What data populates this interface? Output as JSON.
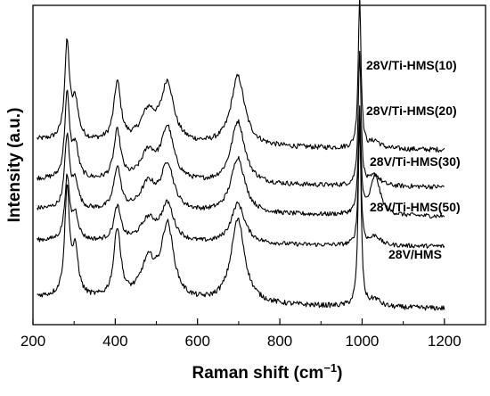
{
  "chart_data": {
    "type": "line",
    "title": "",
    "xlabel": "Raman shift (cm",
    "xlabel_sup": "−1",
    "xlabel_end": ")",
    "ylabel": "Intensity (a.u.)",
    "xlim": [
      200,
      1300
    ],
    "xticks": [
      "200",
      "400",
      "600",
      "800",
      "1000",
      "1200"
    ],
    "yticks_shown": false,
    "series": [
      {
        "name": "28V/Ti-HMS(10)",
        "offset": 4.35,
        "scale": 1.0
      },
      {
        "name": "28V/Ti-HMS(20)",
        "offset": 3.35,
        "scale": 0.95
      },
      {
        "name": "28V/Ti-HMS(30)",
        "offset": 2.55,
        "scale": 0.9
      },
      {
        "name": "28V/Ti-HMS(50)",
        "offset": 1.75,
        "scale": 0.85
      },
      {
        "name": "28V/HMS",
        "offset": 0.0,
        "scale": 1.0
      }
    ],
    "peaks_cm-1": [
      283,
      303,
      405,
      480,
      527,
      698,
      994
    ],
    "x_range_data": [
      210,
      1200
    ]
  }
}
